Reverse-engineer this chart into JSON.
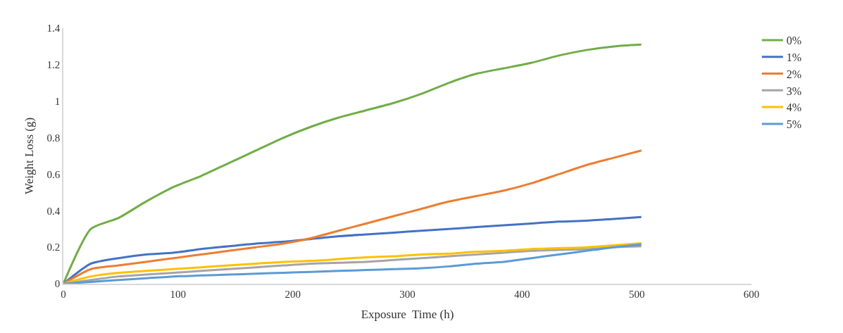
{
  "chart_data": {
    "type": "line",
    "xlabel": "Exposure  Time (h)",
    "ylabel": "Weight Loss (g)",
    "x": [
      0,
      24,
      48,
      72,
      96,
      120,
      144,
      168,
      192,
      216,
      240,
      264,
      288,
      312,
      336,
      360,
      384,
      408,
      432,
      456,
      480,
      504
    ],
    "series": [
      {
        "name": "0%",
        "color": "#70ad47",
        "values": [
          0,
          0.3,
          0.36,
          0.45,
          0.53,
          0.59,
          0.66,
          0.73,
          0.8,
          0.86,
          0.91,
          0.95,
          0.99,
          1.04,
          1.1,
          1.15,
          1.18,
          1.21,
          1.25,
          1.28,
          1.3,
          1.31
        ]
      },
      {
        "name": "1%",
        "color": "#4472c4",
        "values": [
          0,
          0.11,
          0.14,
          0.16,
          0.17,
          0.19,
          0.205,
          0.22,
          0.23,
          0.245,
          0.26,
          0.27,
          0.28,
          0.29,
          0.3,
          0.31,
          0.32,
          0.33,
          0.34,
          0.345,
          0.355,
          0.365
        ]
      },
      {
        "name": "2%",
        "color": "#ed7d31",
        "values": [
          0,
          0.08,
          0.1,
          0.12,
          0.14,
          0.16,
          0.18,
          0.2,
          0.22,
          0.25,
          0.29,
          0.33,
          0.37,
          0.41,
          0.45,
          0.48,
          0.51,
          0.55,
          0.6,
          0.65,
          0.69,
          0.73
        ]
      },
      {
        "name": "3%",
        "color": "#a5a5a5",
        "values": [
          0,
          0.02,
          0.04,
          0.05,
          0.06,
          0.07,
          0.08,
          0.09,
          0.1,
          0.11,
          0.115,
          0.12,
          0.13,
          0.14,
          0.15,
          0.16,
          0.17,
          0.18,
          0.185,
          0.19,
          0.2,
          0.205
        ]
      },
      {
        "name": "4%",
        "color": "#ffc000",
        "values": [
          0,
          0.04,
          0.06,
          0.07,
          0.08,
          0.09,
          0.1,
          0.11,
          0.12,
          0.125,
          0.135,
          0.145,
          0.15,
          0.16,
          0.165,
          0.175,
          0.18,
          0.19,
          0.195,
          0.2,
          0.21,
          0.222
        ]
      },
      {
        "name": "5%",
        "color": "#5b9bd5",
        "values": [
          0,
          0.01,
          0.02,
          0.03,
          0.04,
          0.045,
          0.05,
          0.055,
          0.06,
          0.065,
          0.07,
          0.075,
          0.08,
          0.085,
          0.095,
          0.11,
          0.12,
          0.14,
          0.16,
          0.18,
          0.2,
          0.215
        ]
      }
    ],
    "xlim": [
      0,
      600
    ],
    "xticks": [
      0,
      100,
      200,
      300,
      400,
      500,
      600
    ],
    "ylim": [
      0,
      1.4
    ],
    "yticks": [
      0,
      0.2,
      0.4,
      0.6,
      0.8,
      1,
      1.2,
      1.4
    ],
    "grid": false,
    "legend": "right",
    "marker": "none",
    "line_style": "solid"
  }
}
